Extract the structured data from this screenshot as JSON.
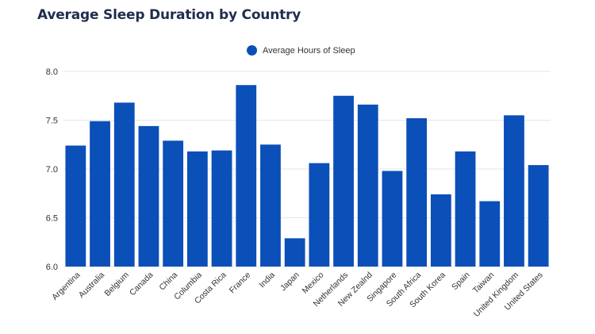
{
  "chart_data": {
    "type": "bar",
    "title": "Average Sleep Duration by Country",
    "xlabel": "",
    "ylabel": "",
    "ylim": [
      6.0,
      8.0
    ],
    "yticks": [
      "6.0",
      "6.5",
      "7.0",
      "7.5",
      "8.0"
    ],
    "grid": true,
    "legend_position": "top-center",
    "series": [
      {
        "name": "Average Hours of Sleep",
        "color": "#0b4fb8",
        "values": [
          7.24,
          7.49,
          7.68,
          7.44,
          7.29,
          7.18,
          7.19,
          7.86,
          7.25,
          6.29,
          7.06,
          7.75,
          7.66,
          6.98,
          7.52,
          6.74,
          7.18,
          6.67,
          7.55,
          7.04
        ]
      }
    ],
    "categories": [
      "Argentina",
      "Australia",
      "Belgium",
      "Canada",
      "China",
      "Columbia",
      "Costa Rica",
      "France",
      "India",
      "Japan",
      "Mexico",
      "Netherlands",
      "New Zealnd",
      "Singapore",
      "South Africa",
      "South Korea",
      "Spain",
      "Taiwan",
      "United Kingdom",
      "United States"
    ]
  },
  "colors": {
    "bar": "#0b4fb8",
    "grid": "#e6e6e6",
    "title": "#1f2d4e"
  }
}
